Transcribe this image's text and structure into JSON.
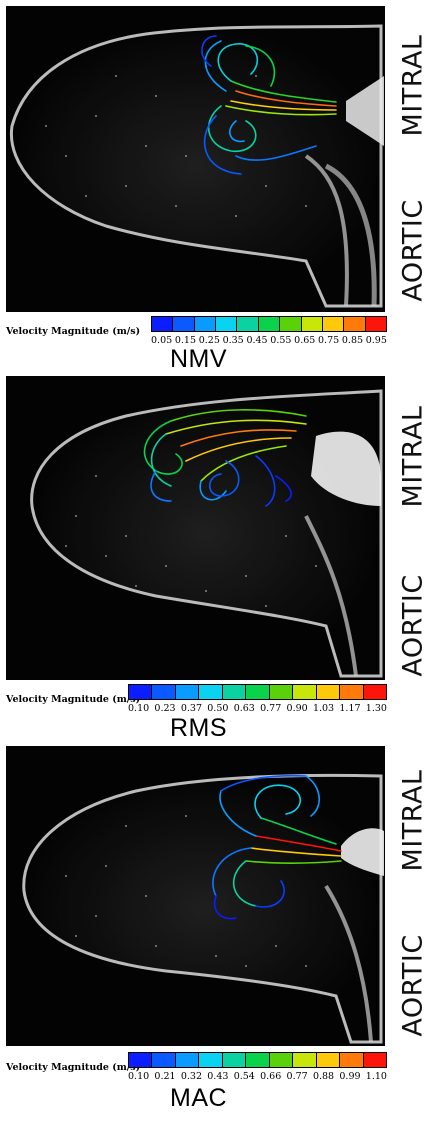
{
  "labels": {
    "mitral": "MITRAL",
    "aortic": "AORTIC",
    "colorbar_title": "Velocity Magnitude (m/s)"
  },
  "panels": [
    {
      "condition": "NMV",
      "ticks": [
        "0.05",
        "0.15",
        "0.25",
        "0.35",
        "0.45",
        "0.55",
        "0.65",
        "0.75",
        "0.85",
        "0.95"
      ]
    },
    {
      "condition": "RMS",
      "ticks": [
        "0.10",
        "0.23",
        "0.37",
        "0.50",
        "0.63",
        "0.77",
        "0.90",
        "1.03",
        "1.17",
        "1.30"
      ]
    },
    {
      "condition": "MAC",
      "ticks": [
        "0.10",
        "0.21",
        "0.32",
        "0.43",
        "0.54",
        "0.66",
        "0.77",
        "0.88",
        "0.99",
        "1.10"
      ]
    }
  ],
  "colormap": [
    "#0a1eff",
    "#0a5aff",
    "#0a9bff",
    "#0ad2f0",
    "#0ad2a0",
    "#0ad24b",
    "#5ad20a",
    "#c8e60a",
    "#ffc80a",
    "#ff7a0a",
    "#ff140a"
  ]
}
